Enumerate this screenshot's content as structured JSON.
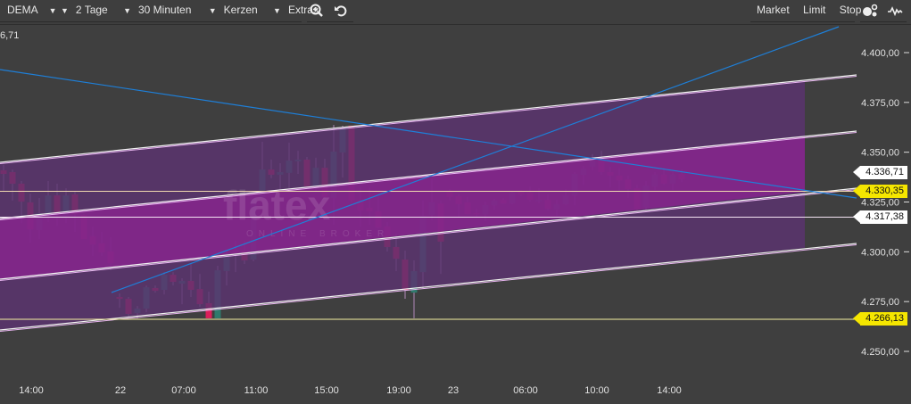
{
  "toolbar": {
    "indicator": "DEMA",
    "period": "2 Tage",
    "interval": "30 Minuten",
    "chart_type": "Kerzen",
    "extras": "Extras",
    "zoom_icon": "zoom-in-icon",
    "undo_icon": "undo-icon",
    "order_market": "Market",
    "order_limit": "Limit",
    "order_stop": "Stop",
    "settings_icon": "shapes-icon",
    "indicator_icon": "pulse-icon"
  },
  "top_left_label": "6,71",
  "watermark": {
    "brand": "flatex",
    "tagline": "ONLINE BROKER"
  },
  "colors": {
    "background": "#3f3f3f",
    "up": "#2f7a6c",
    "down": "#dc1f5a",
    "outer_channel": "#5c3370",
    "inner_channel": "#8a2490",
    "trendline": "#1e7fd8",
    "price_tag_yellow": "#f5e600"
  },
  "price_tags": [
    {
      "label": "4.336,71",
      "value": 4336.71,
      "style": "white"
    },
    {
      "label": "4.330,35",
      "value": 4330.35,
      "style": "yellow"
    },
    {
      "label": "4.317,38",
      "value": 4317.38,
      "style": "white"
    },
    {
      "label": "4.266,13",
      "value": 4266.13,
      "style": "yellow"
    }
  ],
  "chart_data": {
    "type": "candlestick",
    "ylim": [
      4241,
      4410
    ],
    "yticks": [
      {
        "label": "4.400,00",
        "value": 4400
      },
      {
        "label": "4.375,00",
        "value": 4375
      },
      {
        "label": "4.350,00",
        "value": 4350
      },
      {
        "label": "4.325,00",
        "value": 4325
      },
      {
        "label": "4.300,00",
        "value": 4300
      },
      {
        "label": "4.275,00",
        "value": 4275
      },
      {
        "label": "4.250,00",
        "value": 4250
      }
    ],
    "xticks": [
      "14:00",
      "22",
      "07:00",
      "11:00",
      "15:00",
      "19:00",
      "23",
      "06:00",
      "10:00",
      "14:00"
    ],
    "candles_ohlc": [
      [
        4340.9,
        4343.6,
        4330.1,
        4339.1
      ],
      [
        4340.0,
        4341.3,
        4325.7,
        4334.2
      ],
      [
        4334.2,
        4335.5,
        4314.4,
        4325.2
      ],
      [
        4324.8,
        4329.2,
        4304.6,
        4311.3
      ],
      [
        4310.9,
        4327.0,
        4306.4,
        4319.4
      ],
      [
        4318.9,
        4335.5,
        4314.9,
        4328.3
      ],
      [
        4328.3,
        4334.2,
        4313.1,
        4318.9
      ],
      [
        4318.0,
        4331.9,
        4314.4,
        4328.3
      ],
      [
        4328.8,
        4330.1,
        4310.0,
        4318.9
      ],
      [
        4318.5,
        4318.9,
        4306.4,
        4306.4
      ],
      [
        4307.8,
        4312.7,
        4297.9,
        4303.7
      ],
      [
        4304.2,
        4310.0,
        4297.9,
        4299.7
      ],
      [
        4300.1,
        4307.3,
        4290.7,
        4294.3
      ],
      [
        4277.3,
        4279.1,
        4271.9,
        4276.4
      ],
      [
        4276.4,
        4277.3,
        4267.5,
        4268.8
      ],
      [
        4269.2,
        4272.8,
        4266.6,
        4271.5
      ],
      [
        4271.5,
        4283.1,
        4269.7,
        4282.2
      ],
      [
        4281.8,
        4283.1,
        4279.5,
        4280.4
      ],
      [
        4280.9,
        4289.8,
        4278.6,
        4288.5
      ],
      [
        4288.5,
        4289.8,
        4283.1,
        4284.9
      ],
      [
        4284.0,
        4286.7,
        4273.7,
        4285.4
      ],
      [
        4285.4,
        4294.3,
        4277.3,
        4280.9
      ],
      [
        4281.3,
        4288.9,
        4272.4,
        4273.7
      ],
      [
        4274.2,
        4280.0,
        4266.6,
        4266.6
      ],
      [
        4266.6,
        4293.0,
        4266.6,
        4290.7
      ],
      [
        4290.3,
        4301.0,
        4283.1,
        4298.8
      ],
      [
        4301.0,
        4305.5,
        4289.8,
        4299.7
      ],
      [
        4300.6,
        4305.5,
        4293.9,
        4295.7
      ],
      [
        4296.1,
        4327.0,
        4295.2,
        4327.0
      ],
      [
        4327.0,
        4355.2,
        4327.0,
        4341.3
      ],
      [
        4341.3,
        4346.3,
        4336.9,
        4338.7
      ],
      [
        4338.7,
        4344.5,
        4331.0,
        4340.0
      ],
      [
        4339.6,
        4354.8,
        4331.5,
        4345.8
      ],
      [
        4345.4,
        4350.7,
        4339.1,
        4346.3
      ],
      [
        4346.3,
        4347.6,
        4332.4,
        4332.8
      ],
      [
        4332.8,
        4347.2,
        4330.1,
        4342.2
      ],
      [
        4342.2,
        4346.7,
        4326.6,
        4327.5
      ],
      [
        4327.0,
        4363.7,
        4313.6,
        4350.3
      ],
      [
        4349.9,
        4363.3,
        4337.3,
        4362.4
      ],
      [
        4363.3,
        4363.3,
        4324.8,
        4325.7
      ],
      [
        4325.7,
        4332.4,
        4312.7,
        4320.7
      ],
      [
        4322.1,
        4332.4,
        4313.6,
        4320.3
      ],
      [
        4320.3,
        4327.5,
        4311.8,
        4312.2
      ],
      [
        4312.7,
        4314.9,
        4300.1,
        4302.4
      ],
      [
        4302.4,
        4309.1,
        4290.3,
        4296.5
      ],
      [
        4296.1,
        4300.6,
        4276.4,
        4280.9
      ],
      [
        4279.5,
        4295.7,
        4266.6,
        4290.3
      ],
      [
        4289.8,
        4325.7,
        4281.8,
        4318.0
      ],
      [
        4318.5,
        4336.9,
        4315.8,
        4324.8
      ],
      [
        4324.3,
        4325.7,
        4288.9,
        4305.1
      ],
      [
        4330.1,
        4331.5,
        4325.7,
        4327.5
      ],
      [
        4327.9,
        4328.8,
        4317.2,
        4323.9
      ],
      [
        4324.8,
        4327.5,
        4318.9,
        4318.9
      ],
      [
        4319.4,
        4321.6,
        4317.2,
        4318.9
      ],
      [
        4318.9,
        4325.2,
        4315.4,
        4323.4
      ],
      [
        4323.4,
        4326.6,
        4321.2,
        4325.7
      ],
      [
        4326.1,
        4327.0,
        4323.9,
        4324.3
      ],
      [
        4324.3,
        4330.6,
        4323.9,
        4329.7
      ],
      [
        4330.1,
        4331.0,
        4327.9,
        4328.8
      ],
      [
        4329.7,
        4332.8,
        4325.2,
        4326.1
      ],
      [
        4325.7,
        4331.9,
        4324.3,
        4326.1
      ],
      [
        4326.1,
        4328.8,
        4320.7,
        4321.6
      ],
      [
        4321.2,
        4326.1,
        4318.0,
        4323.9
      ],
      [
        4323.9,
        4331.5,
        4323.4,
        4328.3
      ],
      [
        4328.3,
        4340.0,
        4323.4,
        4339.1
      ],
      [
        4338.7,
        4343.1,
        4333.7,
        4341.8
      ],
      [
        4342.7,
        4349.0,
        4340.9,
        4346.7
      ],
      [
        4346.7,
        4350.7,
        4338.7,
        4340.0
      ],
      [
        4340.0,
        4342.7,
        4332.4,
        4338.2
      ],
      [
        4338.2,
        4342.2,
        4330.1,
        4335.9
      ],
      [
        4336.4,
        4338.2,
        4327.0,
        4331.5
      ],
      [
        4331.9,
        4333.7,
        4320.7,
        4321.2
      ],
      [
        4322.5,
        4335.5,
        4320.7,
        4333.3
      ],
      [
        4332.8,
        4340.0,
        4331.0,
        4338.7
      ],
      [
        4338.7,
        4342.2,
        4333.7,
        4334.2
      ],
      [
        4334.2,
        4340.0,
        4331.0,
        4338.7
      ],
      [
        4339.1,
        4341.3,
        4335.0,
        4336.4
      ]
    ],
    "horizontal_lines": [
      4330.35,
      4317.38,
      4266.13
    ]
  }
}
